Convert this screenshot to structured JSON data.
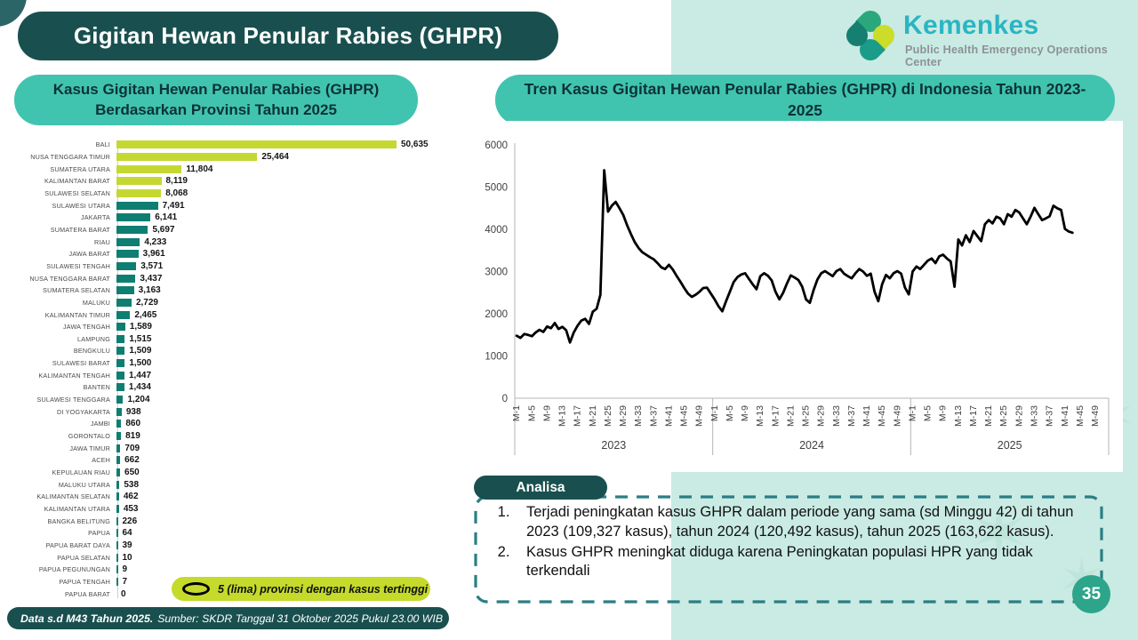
{
  "page": {
    "title": "Gigitan Hewan Penular Rabies (GHPR)",
    "page_number": "35",
    "footer": {
      "bold": "Data s.d M43 Tahun 2025.",
      "rest": "Sumber: SKDR Tanggal 31 Oktober 2025 Pukul 23.00 WIB"
    }
  },
  "logo": {
    "brand": "Kemenkes",
    "subtitle": "Public Health Emergency Operations Center"
  },
  "left_panel": {
    "header": "Kasus Gigitan Hewan Penular Rabies (GHPR) Berdasarkan Provinsi Tahun 2025",
    "legend": "5 (lima) provinsi dengan kasus tertinggi"
  },
  "right_panel": {
    "header": "Tren Kasus Gigitan Hewan Penular Rabies (GHPR) di Indonesia Tahun 2023-2025"
  },
  "analysis": {
    "label": "Analisa",
    "items": [
      "Terjadi peningkatan kasus GHPR dalam periode yang sama (sd Minggu 42) di tahun 2023 (109,327 kasus), tahun 2024 (120,492 kasus), tahun 2025 (163,622 kasus).",
      "Kasus GHPR meningkat diduga karena Peningkatan populasi HPR yang tidak terkendali"
    ]
  },
  "colors": {
    "dark_teal": "#19504f",
    "medium_teal": "#41c4af",
    "mint": "#c9ebe3",
    "bar_highlight": "#c5d832",
    "bar_default": "#0f7e72",
    "legend_bg": "#c5da2b",
    "line": "#000000",
    "page_badge": "#2ca58b",
    "brand_cyan": "#2ab5c4",
    "dashed_border": "#2b7e84"
  },
  "chart_data": [
    {
      "type": "bar",
      "orientation": "horizontal",
      "title": "Kasus Gigitan Hewan Penular Rabies (GHPR) Berdasarkan Provinsi Tahun 2025",
      "categories": [
        "BALI",
        "NUSA TENGGARA TIMUR",
        "SUMATERA UTARA",
        "KALIMANTAN BARAT",
        "SULAWESI SELATAN",
        "SULAWESI UTARA",
        "JAKARTA",
        "SUMATERA BARAT",
        "RIAU",
        "JAWA BARAT",
        "SULAWESI TENGAH",
        "NUSA TENGGARA BARAT",
        "SUMATERA SELATAN",
        "MALUKU",
        "KALIMANTAN TIMUR",
        "JAWA TENGAH",
        "LAMPUNG",
        "BENGKULU",
        "SULAWESI BARAT",
        "KALIMANTAN TENGAH",
        "BANTEN",
        "SULAWESI TENGGARA",
        "DI YOGYAKARTA",
        "JAMBI",
        "GORONTALO",
        "JAWA TIMUR",
        "ACEH",
        "KEPULAUAN RIAU",
        "MALUKU UTARA",
        "KALIMANTAN SELATAN",
        "KALIMANTAN UTARA",
        "BANGKA BELITUNG",
        "PAPUA",
        "PAPUA BARAT DAYA",
        "PAPUA SELATAN",
        "PAPUA PEGUNUNGAN",
        "PAPUA TENGAH",
        "PAPUA BARAT"
      ],
      "values": [
        50635,
        25464,
        11804,
        8119,
        8068,
        7491,
        6141,
        5697,
        4233,
        3961,
        3571,
        3437,
        3163,
        2729,
        2465,
        1589,
        1515,
        1509,
        1500,
        1447,
        1434,
        1204,
        938,
        860,
        819,
        709,
        662,
        650,
        538,
        462,
        453,
        226,
        64,
        39,
        10,
        9,
        7,
        0
      ],
      "highlight_top_n": 5,
      "highlight_color": "#c5d832",
      "bar_color": "#0f7e72",
      "note": "5 (lima) provinsi dengan kasus tertinggi"
    },
    {
      "type": "line",
      "title": "Tren Kasus Gigitan Hewan Penular Rabies (GHPR) di Indonesia Tahun 2023-2025",
      "ylim": [
        0,
        6000
      ],
      "yticks": [
        0,
        1000,
        2000,
        3000,
        4000,
        5000,
        6000
      ],
      "week_tick_labels": [
        "M-1",
        "M-5",
        "M-9",
        "M-13",
        "M-17",
        "M-21",
        "M-25",
        "M-29",
        "M-33",
        "M-37",
        "M-41",
        "M-45",
        "M-49"
      ],
      "year_labels": [
        "2023",
        "2024",
        "2025"
      ],
      "weeks_per_year": 52,
      "line_color": "#000000",
      "grid": false,
      "series": [
        {
          "name": "2023",
          "values": [
            1480,
            1430,
            1520,
            1500,
            1470,
            1560,
            1620,
            1570,
            1700,
            1660,
            1780,
            1640,
            1690,
            1610,
            1320,
            1560,
            1720,
            1840,
            1880,
            1760,
            2050,
            2120,
            2450,
            5400,
            4420,
            4560,
            4650,
            4500,
            4340,
            4100,
            3890,
            3700,
            3560,
            3460,
            3400,
            3340,
            3290,
            3200,
            3100,
            3060,
            3160,
            3050,
            2900,
            2760,
            2610,
            2480,
            2400,
            2450,
            2520,
            2610,
            2620,
            2480
          ]
        },
        {
          "name": "2024",
          "values": [
            2340,
            2180,
            2060,
            2300,
            2520,
            2750,
            2870,
            2930,
            2960,
            2830,
            2700,
            2580,
            2890,
            2960,
            2900,
            2790,
            2520,
            2340,
            2500,
            2720,
            2910,
            2860,
            2800,
            2640,
            2340,
            2260,
            2560,
            2810,
            2960,
            3010,
            2950,
            2890,
            3010,
            3060,
            2950,
            2890,
            2840,
            2960,
            3060,
            3000,
            2900,
            2950,
            2520,
            2300,
            2700,
            2920,
            2840,
            2960,
            3010,
            2950,
            2620,
            2460
          ]
        },
        {
          "name": "2025",
          "values": [
            3000,
            3120,
            3060,
            3160,
            3260,
            3310,
            3200,
            3360,
            3400,
            3310,
            3240,
            2640,
            3760,
            3620,
            3860,
            3700,
            3960,
            3840,
            3720,
            4120,
            4220,
            4140,
            4300,
            4260,
            4120,
            4360,
            4300,
            4460,
            4400,
            4260,
            4120,
            4300,
            4510,
            4360,
            4220,
            4260,
            4310,
            4560,
            4500,
            4460,
            4010,
            3950,
            3920
          ]
        }
      ]
    }
  ]
}
